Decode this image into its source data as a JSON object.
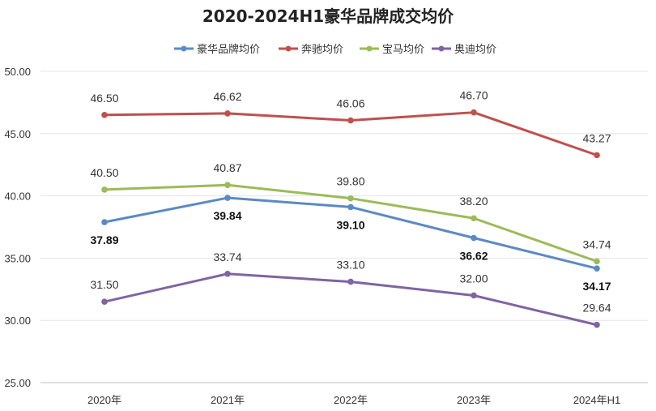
{
  "chart_data": {
    "type": "line",
    "title": "2020-2024H1豪华品牌成交均价",
    "xlabel": "",
    "ylabel": "",
    "categories": [
      "2020年",
      "2021年",
      "2022年",
      "2023年",
      "2024年H1"
    ],
    "ylim": [
      25,
      50
    ],
    "yticks": [
      "25.00",
      "30.00",
      "35.00",
      "40.00",
      "45.00",
      "50.00"
    ],
    "grid": "horizontal",
    "legend_position": "top",
    "series": [
      {
        "name": "豪华品牌均价",
        "color": "#5b8ac5",
        "values": [
          37.89,
          39.84,
          39.1,
          36.62,
          34.17
        ],
        "labels": [
          "37.89",
          "39.84",
          "39.10",
          "36.62",
          "34.17"
        ],
        "label_bold": true,
        "label_side": "below"
      },
      {
        "name": "奔驰均价",
        "color": "#c0504d",
        "values": [
          46.5,
          46.62,
          46.06,
          46.7,
          43.27
        ],
        "labels": [
          "46.50",
          "46.62",
          "46.06",
          "46.70",
          "43.27"
        ],
        "label_bold": false,
        "label_side": "above"
      },
      {
        "name": "宝马均价",
        "color": "#9bbb59",
        "values": [
          40.5,
          40.87,
          39.8,
          38.2,
          34.74
        ],
        "labels": [
          "40.50",
          "40.87",
          "39.80",
          "38.20",
          "34.74"
        ],
        "label_bold": false,
        "label_side": "above"
      },
      {
        "name": "奥迪均价",
        "color": "#8064a2",
        "values": [
          31.5,
          33.74,
          33.1,
          32.0,
          29.64
        ],
        "labels": [
          "31.50",
          "33.74",
          "33.10",
          "32.00",
          "29.64"
        ],
        "label_bold": false,
        "label_side": "above"
      }
    ]
  }
}
